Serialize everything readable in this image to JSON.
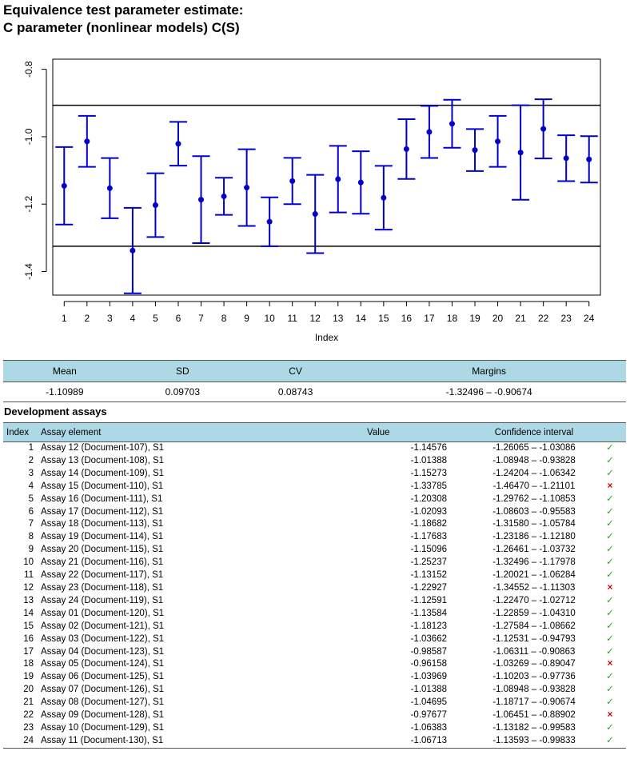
{
  "title_line1": "Equivalence test parameter estimate:",
  "title_line2": "C parameter (nonlinear models) C(S)",
  "chart_data": {
    "type": "scatter",
    "xlabel": "Index",
    "ylabel": "",
    "x": [
      1,
      2,
      3,
      4,
      5,
      6,
      7,
      8,
      9,
      10,
      11,
      12,
      13,
      14,
      15,
      16,
      17,
      18,
      19,
      20,
      21,
      22,
      23,
      24
    ],
    "values": [
      -1.14576,
      -1.01388,
      -1.15273,
      -1.33785,
      -1.20308,
      -1.02093,
      -1.18682,
      -1.17683,
      -1.15096,
      -1.25237,
      -1.13152,
      -1.22927,
      -1.12591,
      -1.13584,
      -1.18123,
      -1.03662,
      -0.98587,
      -0.96158,
      -1.03969,
      -1.01388,
      -1.04695,
      -0.97677,
      -1.06383,
      -1.06713
    ],
    "lower": [
      -1.26065,
      -1.08948,
      -1.24204,
      -1.4647,
      -1.29762,
      -1.08603,
      -1.3158,
      -1.23186,
      -1.26461,
      -1.32496,
      -1.20021,
      -1.34552,
      -1.2247,
      -1.22859,
      -1.27584,
      -1.12531,
      -1.06311,
      -1.03269,
      -1.10203,
      -1.08948,
      -1.18717,
      -1.06451,
      -1.13182,
      -1.13593
    ],
    "upper": [
      -1.03086,
      -0.93828,
      -1.06342,
      -1.21101,
      -1.10853,
      -0.95583,
      -1.05784,
      -1.1218,
      -1.03732,
      -1.17978,
      -1.06284,
      -1.11303,
      -1.02712,
      -1.0431,
      -1.08662,
      -0.94793,
      -0.90863,
      -0.89047,
      -0.97736,
      -0.93828,
      -0.90674,
      -0.88902,
      -0.99583,
      -0.99833
    ],
    "margins": [
      -1.32496,
      -0.90674
    ],
    "ylim": [
      -1.47,
      -0.77
    ],
    "xlim": [
      0.5,
      24.5
    ],
    "yticks": [
      "-0.8",
      "-1.0",
      "-1.2",
      "-1.4"
    ],
    "grid": false,
    "color": "#0000cc"
  },
  "summary": {
    "headers": [
      "Mean",
      "SD",
      "CV",
      "Margins"
    ],
    "values": [
      "-1.10989",
      "0.09703",
      "0.08743",
      "-1.32496 – -0.90674"
    ]
  },
  "development": {
    "title": "Development assays",
    "headers": {
      "index": "Index",
      "element": "Assay element",
      "value": "Value",
      "ci": "Confidence interval"
    },
    "rows": [
      {
        "index": "1",
        "element": "Assay 12 (Document-107), S1",
        "value": "-1.14576",
        "lo": "-1.26065",
        "hi": "-1.03086",
        "ok": true
      },
      {
        "index": "2",
        "element": "Assay 13 (Document-108), S1",
        "value": "-1.01388",
        "lo": "-1.08948",
        "hi": "-0.93828",
        "ok": true
      },
      {
        "index": "3",
        "element": "Assay 14 (Document-109), S1",
        "value": "-1.15273",
        "lo": "-1.24204",
        "hi": "-1.06342",
        "ok": true
      },
      {
        "index": "4",
        "element": "Assay 15 (Document-110), S1",
        "value": "-1.33785",
        "lo": "-1.46470",
        "hi": "-1.21101",
        "ok": false
      },
      {
        "index": "5",
        "element": "Assay 16 (Document-111), S1",
        "value": "-1.20308",
        "lo": "-1.29762",
        "hi": "-1.10853",
        "ok": true
      },
      {
        "index": "6",
        "element": "Assay 17 (Document-112), S1",
        "value": "-1.02093",
        "lo": "-1.08603",
        "hi": "-0.95583",
        "ok": true
      },
      {
        "index": "7",
        "element": "Assay 18 (Document-113), S1",
        "value": "-1.18682",
        "lo": "-1.31580",
        "hi": "-1.05784",
        "ok": true
      },
      {
        "index": "8",
        "element": "Assay 19 (Document-114), S1",
        "value": "-1.17683",
        "lo": "-1.23186",
        "hi": "-1.12180",
        "ok": true
      },
      {
        "index": "9",
        "element": "Assay 20 (Document-115), S1",
        "value": "-1.15096",
        "lo": "-1.26461",
        "hi": "-1.03732",
        "ok": true
      },
      {
        "index": "10",
        "element": "Assay 21 (Document-116), S1",
        "value": "-1.25237",
        "lo": "-1.32496",
        "hi": "-1.17978",
        "ok": true
      },
      {
        "index": "11",
        "element": "Assay 22 (Document-117), S1",
        "value": "-1.13152",
        "lo": "-1.20021",
        "hi": "-1.06284",
        "ok": true
      },
      {
        "index": "12",
        "element": "Assay 23 (Document-118), S1",
        "value": "-1.22927",
        "lo": "-1.34552",
        "hi": "-1.11303",
        "ok": false
      },
      {
        "index": "13",
        "element": "Assay 24 (Document-119), S1",
        "value": "-1.12591",
        "lo": "-1.22470",
        "hi": "-1.02712",
        "ok": true
      },
      {
        "index": "14",
        "element": "Assay 01 (Document-120), S1",
        "value": "-1.13584",
        "lo": "-1.22859",
        "hi": "-1.04310",
        "ok": true
      },
      {
        "index": "15",
        "element": "Assay 02 (Document-121), S1",
        "value": "-1.18123",
        "lo": "-1.27584",
        "hi": "-1.08662",
        "ok": true
      },
      {
        "index": "16",
        "element": "Assay 03 (Document-122), S1",
        "value": "-1.03662",
        "lo": "-1.12531",
        "hi": "-0.94793",
        "ok": true
      },
      {
        "index": "17",
        "element": "Assay 04 (Document-123), S1",
        "value": "-0.98587",
        "lo": "-1.06311",
        "hi": "-0.90863",
        "ok": true
      },
      {
        "index": "18",
        "element": "Assay 05 (Document-124), S1",
        "value": "-0.96158",
        "lo": "-1.03269",
        "hi": "-0.89047",
        "ok": false
      },
      {
        "index": "19",
        "element": "Assay 06 (Document-125), S1",
        "value": "-1.03969",
        "lo": "-1.10203",
        "hi": "-0.97736",
        "ok": true
      },
      {
        "index": "20",
        "element": "Assay 07 (Document-126), S1",
        "value": "-1.01388",
        "lo": "-1.08948",
        "hi": "-0.93828",
        "ok": true
      },
      {
        "index": "21",
        "element": "Assay 08 (Document-127), S1",
        "value": "-1.04695",
        "lo": "-1.18717",
        "hi": "-0.90674",
        "ok": true
      },
      {
        "index": "22",
        "element": "Assay 09 (Document-128), S1",
        "value": "-0.97677",
        "lo": "-1.06451",
        "hi": "-0.88902",
        "ok": false
      },
      {
        "index": "23",
        "element": "Assay 10 (Document-129), S1",
        "value": "-1.06383",
        "lo": "-1.13182",
        "hi": "-0.99583",
        "ok": true
      },
      {
        "index": "24",
        "element": "Assay 11 (Document-130), S1",
        "value": "-1.06713",
        "lo": "-1.13593",
        "hi": "-0.99833",
        "ok": true
      }
    ],
    "ci_separator": "–",
    "pass_icon": "✓",
    "fail_icon": "×"
  }
}
